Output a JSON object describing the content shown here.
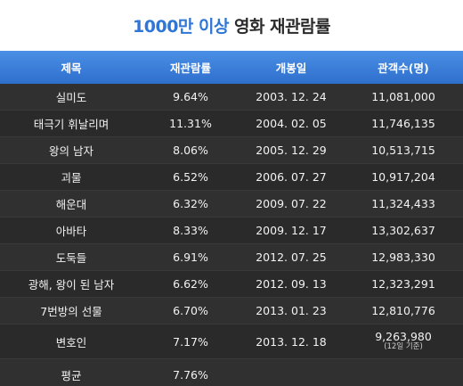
{
  "title": {
    "accent": "1000만 이상",
    "rest": "영화 재관람률"
  },
  "headers": {
    "title": "제목",
    "rewatch": "재관람률",
    "release": "개봉일",
    "audience": "관객수(명)"
  },
  "rows": [
    {
      "title": "실미도",
      "rewatch": "9.64%",
      "release": "2003. 12. 24",
      "audience": "11,081,000"
    },
    {
      "title": "태극기 휘날리며",
      "rewatch": "11.31%",
      "release": "2004. 02. 05",
      "audience": "11,746,135"
    },
    {
      "title": "왕의 남자",
      "rewatch": "8.06%",
      "release": "2005. 12. 29",
      "audience": "10,513,715"
    },
    {
      "title": "괴물",
      "rewatch": "6.52%",
      "release": "2006. 07. 27",
      "audience": "10,917,204"
    },
    {
      "title": "해운대",
      "rewatch": "6.32%",
      "release": "2009. 07. 22",
      "audience": "11,324,433"
    },
    {
      "title": "아바타",
      "rewatch": "8.33%",
      "release": "2009. 12. 17",
      "audience": "13,302,637"
    },
    {
      "title": "도둑들",
      "rewatch": "6.91%",
      "release": "2012. 07. 25",
      "audience": "12,983,330"
    },
    {
      "title": "광해, 왕이 된 남자",
      "rewatch": "6.62%",
      "release": "2012. 09. 13",
      "audience": "12,323,291"
    },
    {
      "title": "7번방의 선물",
      "rewatch": "6.70%",
      "release": "2013. 01. 23",
      "audience": "12,810,776"
    },
    {
      "title": "변호인",
      "rewatch": "7.17%",
      "release": "2013. 12. 18",
      "audience": "9,263,980",
      "note": "(12일 기준)"
    }
  ],
  "average": {
    "label": "평균",
    "rewatch": "7.76%"
  },
  "colors": {
    "accent": "#2f76d6",
    "header_bg": "#3a80dc",
    "table_bg": "#2d2d2d"
  }
}
